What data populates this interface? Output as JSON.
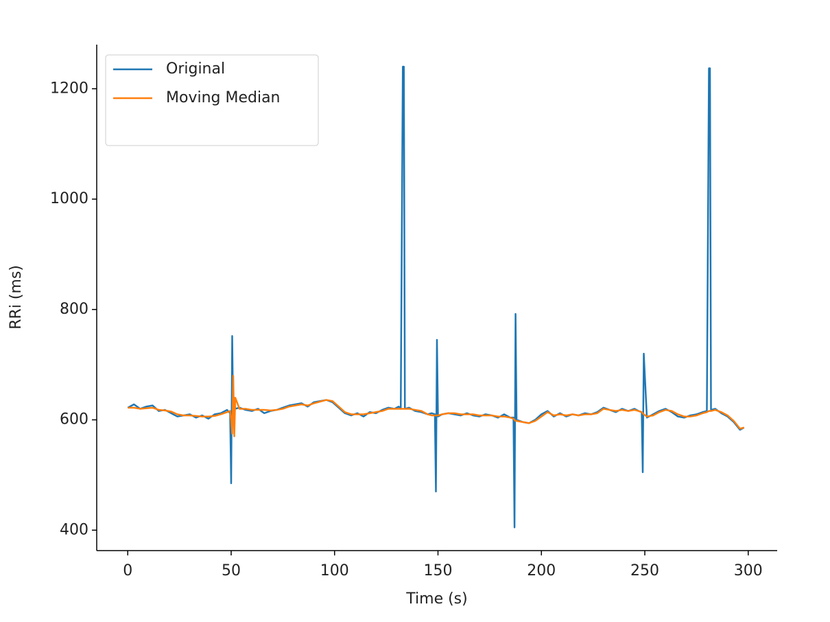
{
  "chart_data": {
    "type": "line",
    "xlabel": "Time (s)",
    "ylabel": "RRi (ms)",
    "x": [
      0,
      3,
      6,
      9,
      12,
      15,
      18,
      21,
      24,
      27,
      30,
      33,
      36,
      39,
      42,
      45,
      48,
      49.5,
      50,
      50.5,
      51,
      51.5,
      52,
      54,
      57,
      60,
      63,
      66,
      69,
      72,
      75,
      78,
      81,
      84,
      87,
      90,
      93,
      96,
      99,
      102,
      105,
      108,
      111,
      114,
      117,
      120,
      123,
      126,
      129,
      131,
      132,
      133,
      133.5,
      134,
      136,
      139,
      142,
      145,
      147,
      148.5,
      149,
      149.5,
      150,
      152,
      155,
      158,
      161,
      164,
      167,
      170,
      173,
      176,
      179,
      182,
      185,
      186.5,
      187,
      187.5,
      188,
      191,
      194,
      197,
      200,
      203,
      206,
      209,
      212,
      215,
      218,
      221,
      224,
      227,
      230,
      233,
      236,
      239,
      242,
      245,
      247,
      248.5,
      249,
      249.5,
      251,
      254,
      257,
      260,
      263,
      266,
      269,
      272,
      275,
      278,
      280,
      281,
      281.5,
      282,
      284,
      287,
      290,
      293,
      296,
      298
    ],
    "series": [
      {
        "name": "Original",
        "color": "#1f77b4",
        "values": [
          622,
          628,
          620,
          624,
          626,
          616,
          618,
          612,
          606,
          608,
          610,
          604,
          608,
          602,
          610,
          612,
          618,
          612,
          485,
          752,
          600,
          640,
          620,
          622,
          618,
          616,
          620,
          612,
          616,
          618,
          622,
          626,
          628,
          630,
          624,
          632,
          634,
          636,
          632,
          622,
          612,
          608,
          612,
          606,
          614,
          612,
          618,
          622,
          620,
          624,
          620,
          1240,
          1240,
          620,
          622,
          616,
          614,
          610,
          612,
          610,
          470,
          745,
          606,
          610,
          612,
          610,
          608,
          612,
          608,
          606,
          610,
          608,
          604,
          610,
          604,
          604,
          405,
          792,
          600,
          596,
          594,
          600,
          610,
          616,
          606,
          612,
          606,
          610,
          608,
          612,
          610,
          614,
          622,
          618,
          614,
          620,
          616,
          620,
          616,
          614,
          505,
          720,
          604,
          610,
          616,
          620,
          614,
          606,
          604,
          608,
          610,
          614,
          616,
          1237,
          1237,
          618,
          620,
          612,
          606,
          596,
          582,
          586
        ]
      },
      {
        "name": "Moving Median",
        "color": "#ff7f0e",
        "values": [
          622,
          622,
          620,
          621,
          622,
          618,
          617,
          615,
          610,
          608,
          608,
          607,
          606,
          606,
          607,
          610,
          614,
          616,
          600,
          575,
          680,
          570,
          640,
          620,
          620,
          618,
          618,
          618,
          617,
          618,
          620,
          624,
          626,
          628,
          626,
          630,
          633,
          636,
          634,
          624,
          614,
          610,
          610,
          610,
          612,
          614,
          616,
          620,
          620,
          620,
          620,
          620,
          620,
          620,
          620,
          618,
          616,
          610,
          608,
          608,
          608,
          608,
          608,
          610,
          612,
          612,
          610,
          610,
          610,
          608,
          608,
          608,
          606,
          606,
          604,
          602,
          600,
          598,
          598,
          596,
          594,
          598,
          606,
          614,
          608,
          610,
          608,
          610,
          608,
          610,
          610,
          612,
          620,
          618,
          616,
          618,
          616,
          618,
          616,
          614,
          612,
          610,
          606,
          608,
          614,
          618,
          616,
          610,
          606,
          606,
          608,
          612,
          614,
          616,
          616,
          616,
          618,
          614,
          608,
          598,
          584,
          586
        ]
      }
    ],
    "xlim": [
      -15,
      314
    ],
    "ylim": [
      363,
      1280
    ],
    "xticks": [
      0,
      50,
      100,
      150,
      200,
      250,
      300
    ],
    "yticks": [
      400,
      600,
      800,
      1000,
      1200
    ],
    "legend": "upper left"
  }
}
